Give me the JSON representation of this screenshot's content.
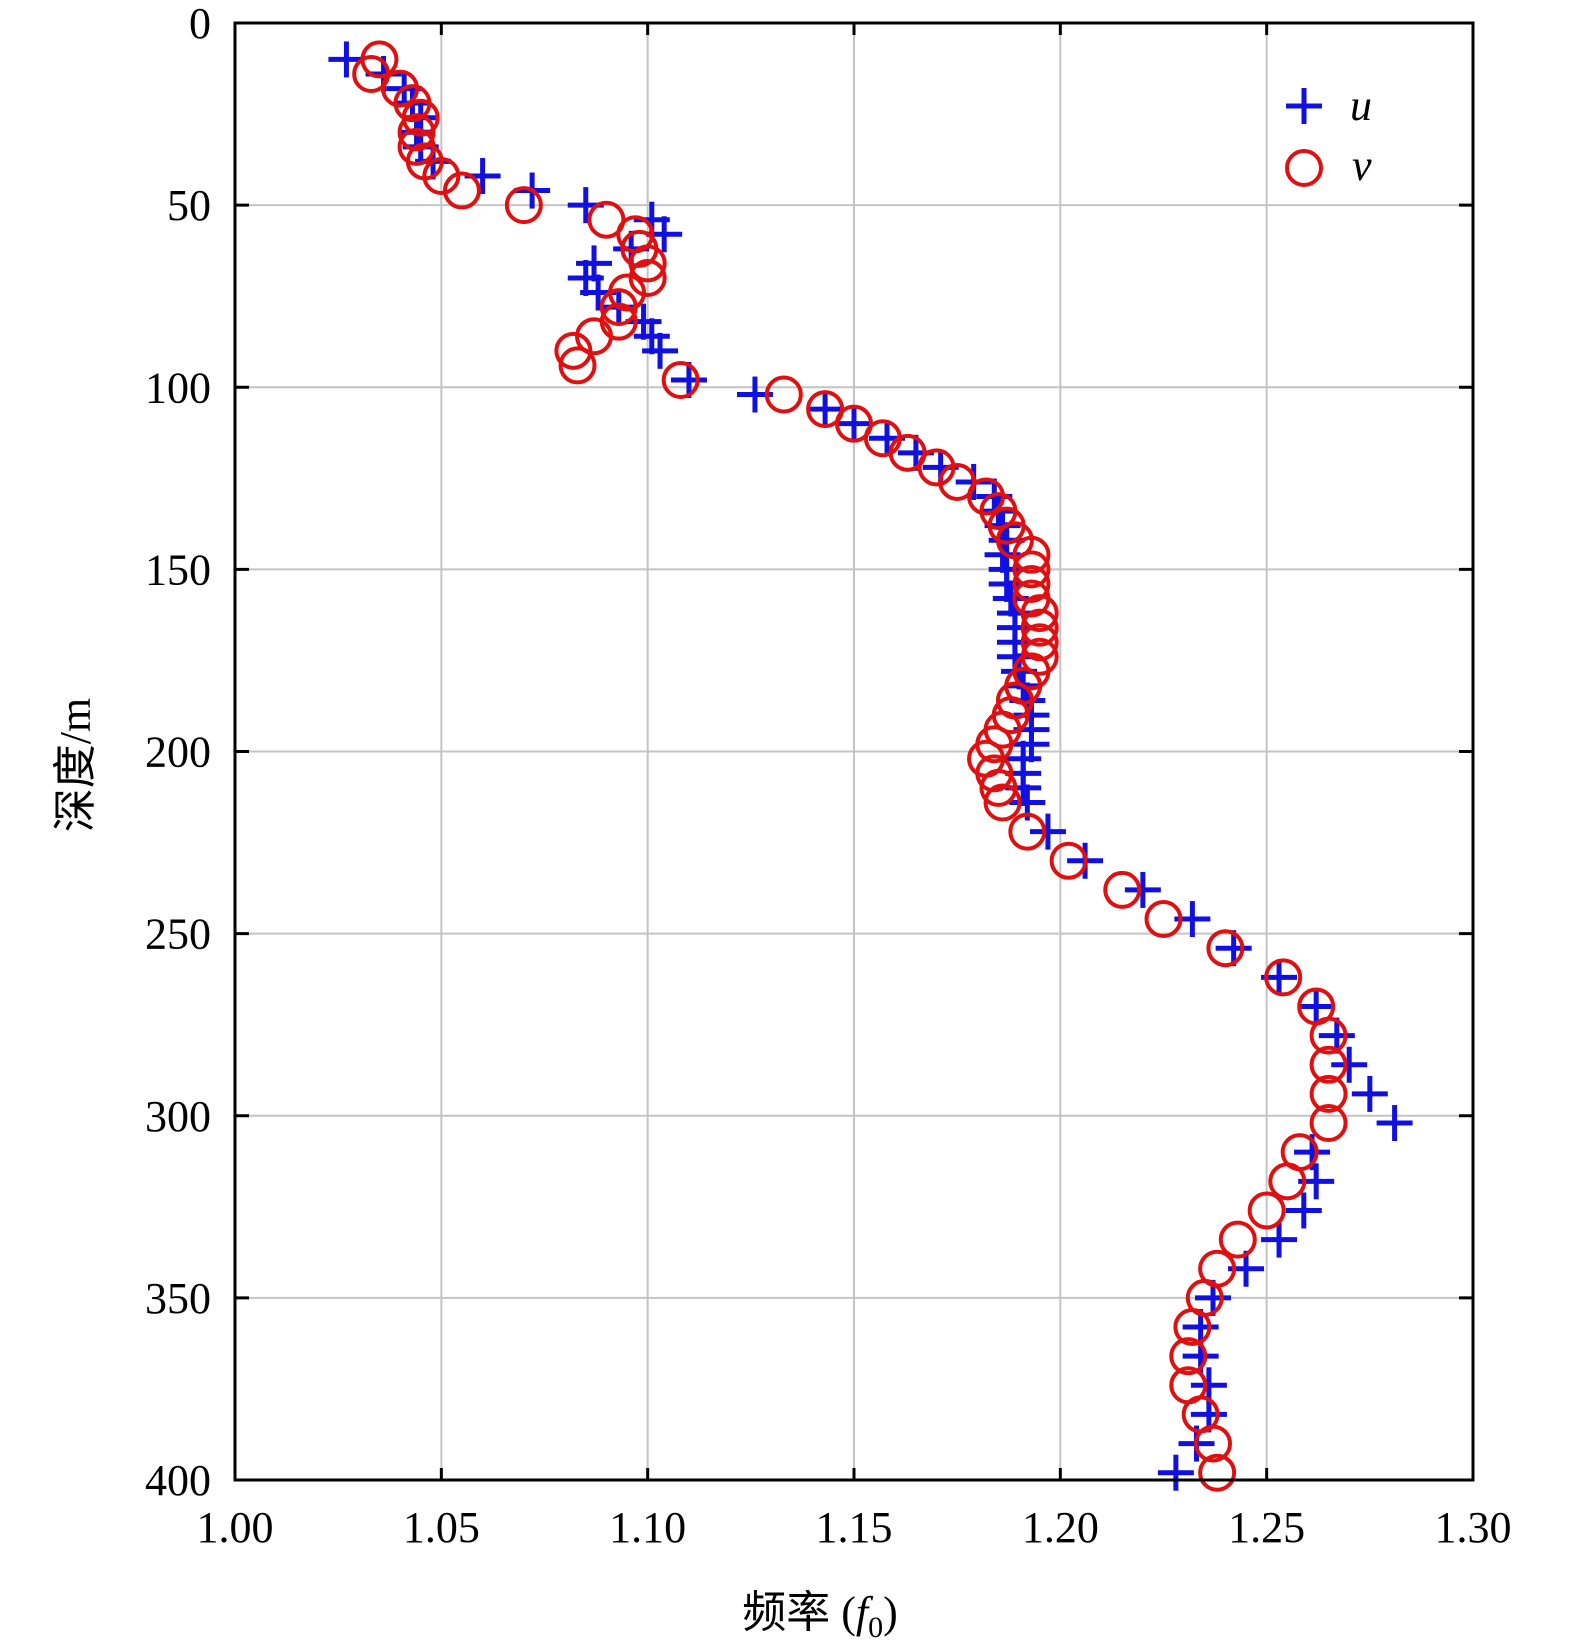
{
  "chart_data": {
    "type": "scatter",
    "title": "",
    "xlabel": "频率 (",
    "xlabel_sym": "f",
    "xlabel_sub": "0",
    "xlabel_end": ")",
    "ylabel": "深度/m",
    "xlim": [
      1.0,
      1.3
    ],
    "ylim": [
      0,
      400
    ],
    "y_inverted": true,
    "grid": true,
    "legend_position": "top-right",
    "x_ticks": [
      1.0,
      1.05,
      1.1,
      1.15,
      1.2,
      1.25,
      1.3
    ],
    "x_tick_labels": [
      "1.00",
      "1.05",
      "1.10",
      "1.15",
      "1.20",
      "1.25",
      "1.30"
    ],
    "y_ticks": [
      0,
      50,
      100,
      150,
      200,
      250,
      300,
      350,
      400
    ],
    "y_tick_labels": [
      "0",
      "50",
      "100",
      "150",
      "200",
      "250",
      "300",
      "350",
      "400"
    ],
    "series": [
      {
        "name": "u",
        "marker": "plus",
        "color": "#1010e0",
        "points": [
          [
            1.027,
            10
          ],
          [
            1.036,
            14
          ],
          [
            1.041,
            18
          ],
          [
            1.043,
            22
          ],
          [
            1.045,
            26
          ],
          [
            1.044,
            30
          ],
          [
            1.045,
            34
          ],
          [
            1.048,
            38
          ],
          [
            1.06,
            42
          ],
          [
            1.072,
            46
          ],
          [
            1.085,
            50
          ],
          [
            1.101,
            54
          ],
          [
            1.104,
            58
          ],
          [
            1.096,
            62
          ],
          [
            1.087,
            66
          ],
          [
            1.085,
            70
          ],
          [
            1.088,
            74
          ],
          [
            1.093,
            78
          ],
          [
            1.099,
            82
          ],
          [
            1.101,
            86
          ],
          [
            1.103,
            90
          ],
          [
            1.11,
            98
          ],
          [
            1.126,
            102
          ],
          [
            1.143,
            106
          ],
          [
            1.15,
            110
          ],
          [
            1.158,
            114
          ],
          [
            1.165,
            118
          ],
          [
            1.171,
            122
          ],
          [
            1.179,
            126
          ],
          [
            1.184,
            130
          ],
          [
            1.185,
            134
          ],
          [
            1.186,
            138
          ],
          [
            1.187,
            142
          ],
          [
            1.186,
            146
          ],
          [
            1.187,
            150
          ],
          [
            1.187,
            154
          ],
          [
            1.188,
            158
          ],
          [
            1.189,
            162
          ],
          [
            1.189,
            166
          ],
          [
            1.189,
            170
          ],
          [
            1.189,
            174
          ],
          [
            1.19,
            178
          ],
          [
            1.191,
            182
          ],
          [
            1.192,
            186
          ],
          [
            1.193,
            190
          ],
          [
            1.193,
            194
          ],
          [
            1.193,
            198
          ],
          [
            1.191,
            202
          ],
          [
            1.191,
            206
          ],
          [
            1.191,
            210
          ],
          [
            1.192,
            214
          ],
          [
            1.197,
            222
          ],
          [
            1.206,
            230
          ],
          [
            1.22,
            238
          ],
          [
            1.232,
            246
          ],
          [
            1.242,
            254
          ],
          [
            1.253,
            262
          ],
          [
            1.262,
            270
          ],
          [
            1.267,
            278
          ],
          [
            1.27,
            286
          ],
          [
            1.275,
            294
          ],
          [
            1.281,
            302
          ],
          [
            1.261,
            310
          ],
          [
            1.262,
            318
          ],
          [
            1.259,
            326
          ],
          [
            1.253,
            334
          ],
          [
            1.245,
            342
          ],
          [
            1.237,
            350
          ],
          [
            1.234,
            358
          ],
          [
            1.234,
            366
          ],
          [
            1.236,
            374
          ],
          [
            1.236,
            382
          ],
          [
            1.233,
            390
          ],
          [
            1.228,
            398
          ]
        ]
      },
      {
        "name": "v",
        "marker": "circle",
        "color": "#e01010",
        "points": [
          [
            1.035,
            10
          ],
          [
            1.033,
            14
          ],
          [
            1.04,
            18
          ],
          [
            1.043,
            22
          ],
          [
            1.045,
            26
          ],
          [
            1.044,
            30
          ],
          [
            1.044,
            34
          ],
          [
            1.046,
            38
          ],
          [
            1.05,
            42
          ],
          [
            1.055,
            46
          ],
          [
            1.07,
            50
          ],
          [
            1.09,
            54
          ],
          [
            1.097,
            58
          ],
          [
            1.098,
            62
          ],
          [
            1.1,
            66
          ],
          [
            1.1,
            70
          ],
          [
            1.095,
            74
          ],
          [
            1.093,
            78
          ],
          [
            1.093,
            82
          ],
          [
            1.087,
            86
          ],
          [
            1.082,
            90
          ],
          [
            1.083,
            94
          ],
          [
            1.108,
            98
          ],
          [
            1.133,
            102
          ],
          [
            1.143,
            106
          ],
          [
            1.15,
            110
          ],
          [
            1.157,
            114
          ],
          [
            1.163,
            118
          ],
          [
            1.17,
            122
          ],
          [
            1.175,
            126
          ],
          [
            1.182,
            130
          ],
          [
            1.185,
            134
          ],
          [
            1.187,
            138
          ],
          [
            1.189,
            142
          ],
          [
            1.193,
            146
          ],
          [
            1.193,
            150
          ],
          [
            1.193,
            154
          ],
          [
            1.193,
            158
          ],
          [
            1.195,
            162
          ],
          [
            1.195,
            166
          ],
          [
            1.195,
            170
          ],
          [
            1.195,
            174
          ],
          [
            1.193,
            178
          ],
          [
            1.191,
            182
          ],
          [
            1.189,
            186
          ],
          [
            1.188,
            190
          ],
          [
            1.186,
            194
          ],
          [
            1.184,
            198
          ],
          [
            1.182,
            202
          ],
          [
            1.184,
            206
          ],
          [
            1.185,
            210
          ],
          [
            1.186,
            214
          ],
          [
            1.192,
            222
          ],
          [
            1.202,
            230
          ],
          [
            1.215,
            238
          ],
          [
            1.225,
            246
          ],
          [
            1.24,
            254
          ],
          [
            1.254,
            262
          ],
          [
            1.262,
            270
          ],
          [
            1.265,
            278
          ],
          [
            1.265,
            286
          ],
          [
            1.265,
            294
          ],
          [
            1.265,
            302
          ],
          [
            1.258,
            310
          ],
          [
            1.255,
            318
          ],
          [
            1.25,
            326
          ],
          [
            1.243,
            334
          ],
          [
            1.238,
            342
          ],
          [
            1.235,
            350
          ],
          [
            1.232,
            358
          ],
          [
            1.231,
            366
          ],
          [
            1.231,
            374
          ],
          [
            1.234,
            382
          ],
          [
            1.237,
            390
          ],
          [
            1.238,
            398
          ]
        ]
      }
    ]
  }
}
